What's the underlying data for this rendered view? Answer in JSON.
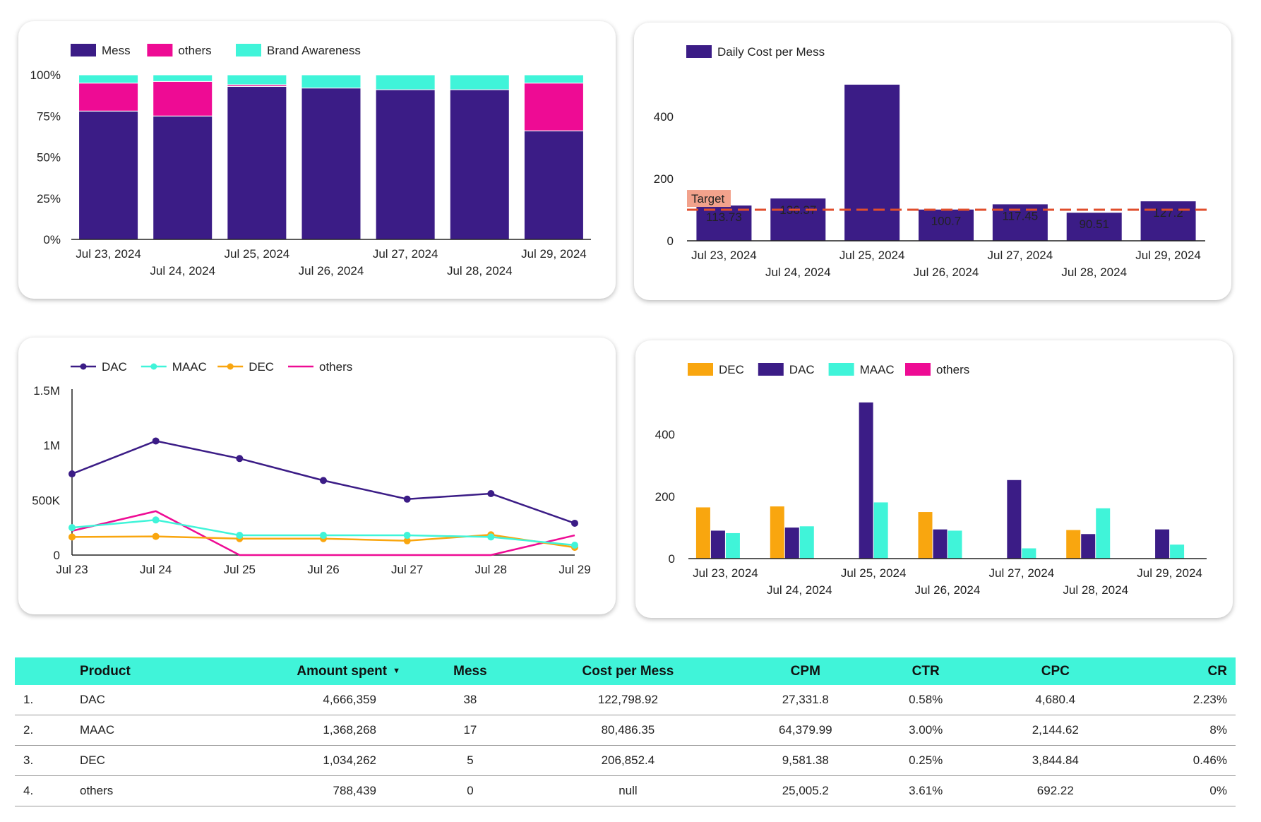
{
  "colors": {
    "dac": "#3B1C86",
    "others": "#EE0B94",
    "maac": "#40F4D9",
    "dec": "#F9A60F",
    "target_line": "#E04E2C",
    "target_label_bg": "#F2A28C",
    "table_header_bg": "#40F4D9"
  },
  "chart_data": [
    {
      "id": "share-chart",
      "type": "bar",
      "stacked": "percent",
      "title": "",
      "legend": [
        "Mess",
        "others",
        "Brand Awareness"
      ],
      "legend_position": "top-left",
      "categories": [
        "Jul 23, 2024",
        "Jul 24, 2024",
        "Jul 25, 2024",
        "Jul 26, 2024",
        "Jul 27, 2024",
        "Jul 28, 2024",
        "Jul 29, 2024"
      ],
      "series": [
        {
          "name": "Mess",
          "values": [
            78,
            75,
            93,
            92,
            91,
            91,
            66
          ]
        },
        {
          "name": "others",
          "values": [
            17,
            21,
            1,
            0,
            0,
            0,
            29
          ]
        },
        {
          "name": "Brand Awareness",
          "values": [
            5,
            4,
            6,
            8,
            9,
            9,
            5
          ]
        }
      ],
      "yticks": [
        "0%",
        "25%",
        "50%",
        "75%",
        "100%"
      ],
      "ylim": [
        0,
        100
      ],
      "grid": false
    },
    {
      "id": "cost-chart",
      "type": "bar",
      "title": "",
      "legend": [
        "Daily Cost per Mess"
      ],
      "legend_position": "top-left",
      "categories": [
        "Jul 23, 2024",
        "Jul 24, 2024",
        "Jul 25, 2024",
        "Jul 26, 2024",
        "Jul 27, 2024",
        "Jul 28, 2024",
        "Jul 29, 2024"
      ],
      "series": [
        {
          "name": "Daily Cost per Mess",
          "values": [
            113.73,
            136.37,
            503,
            100.7,
            117.45,
            90.51,
            127.2
          ]
        }
      ],
      "data_labels": [
        "113.73",
        "136.37",
        "",
        "100.7",
        "117.45",
        "90.51",
        "127.2"
      ],
      "reference_line": {
        "label": "Target",
        "value": 100
      },
      "yticks": [
        "0",
        "200",
        "400"
      ],
      "ylim": [
        0,
        530
      ],
      "grid": false
    },
    {
      "id": "trend-chart",
      "type": "line",
      "title": "",
      "legend": [
        "DAC",
        "MAAC",
        "DEC",
        "others"
      ],
      "legend_position": "top-left",
      "x": [
        "Jul 23",
        "Jul 24",
        "Jul 25",
        "Jul 26",
        "Jul 27",
        "Jul 28",
        "Jul 29"
      ],
      "series": [
        {
          "name": "DAC",
          "values": [
            740000,
            1040000,
            880000,
            680000,
            510000,
            560000,
            290000
          ],
          "markers": true
        },
        {
          "name": "MAAC",
          "values": [
            250000,
            320000,
            180000,
            180000,
            180000,
            165000,
            90000
          ],
          "markers": true
        },
        {
          "name": "DEC",
          "values": [
            165000,
            170000,
            150000,
            150000,
            130000,
            185000,
            70000
          ],
          "markers": true
        },
        {
          "name": "others",
          "values": [
            220000,
            400000,
            0,
            0,
            0,
            0,
            180000
          ],
          "markers": false
        }
      ],
      "yticks": [
        "0",
        "500K",
        "1M",
        "1.5M"
      ],
      "ylim": [
        0,
        1500000
      ],
      "grid": false
    },
    {
      "id": "product-chart",
      "type": "bar",
      "title": "",
      "legend": [
        "DEC",
        "DAC",
        "MAAC",
        "others"
      ],
      "legend_position": "top-left",
      "categories": [
        "Jul 23, 2024",
        "Jul 24, 2024",
        "Jul 25, 2024",
        "Jul 26, 2024",
        "Jul 27, 2024",
        "Jul 28, 2024",
        "Jul 29, 2024"
      ],
      "series": [
        {
          "name": "DEC",
          "values": [
            165,
            168,
            0,
            150,
            0,
            92,
            0
          ]
        },
        {
          "name": "DAC",
          "values": [
            90,
            100,
            503,
            94,
            253,
            79,
            94
          ]
        },
        {
          "name": "MAAC",
          "values": [
            82,
            104,
            181,
            90,
            33,
            162,
            45
          ]
        },
        {
          "name": "others",
          "values": [
            0,
            0,
            0,
            0,
            0,
            0,
            0
          ]
        }
      ],
      "yticks": [
        "0",
        "200",
        "400"
      ],
      "ylim": [
        0,
        530
      ],
      "grid": false
    },
    {
      "id": "product-table",
      "type": "table",
      "columns": [
        "Product",
        "Amount spent",
        "Mess",
        "Cost per Mess",
        "CPM",
        "CTR",
        "CPC",
        "CR"
      ],
      "sorted_by": "Amount spent",
      "sort_direction": "descending",
      "rows": [
        {
          "rank": "1.",
          "cells": [
            "DAC",
            "4,666,359",
            "38",
            "122,798.92",
            "27,331.8",
            "0.58%",
            "4,680.4",
            "2.23%"
          ]
        },
        {
          "rank": "2.",
          "cells": [
            "MAAC",
            "1,368,268",
            "17",
            "80,486.35",
            "64,379.99",
            "3.00%",
            "2,144.62",
            "8%"
          ]
        },
        {
          "rank": "3.",
          "cells": [
            "DEC",
            "1,034,262",
            "5",
            "206,852.4",
            "9,581.38",
            "0.25%",
            "3,844.84",
            "0.46%"
          ]
        },
        {
          "rank": "4.",
          "cells": [
            "others",
            "788,439",
            "0",
            "null",
            "25,005.2",
            "3.61%",
            "692.22",
            "0%"
          ]
        }
      ]
    }
  ]
}
